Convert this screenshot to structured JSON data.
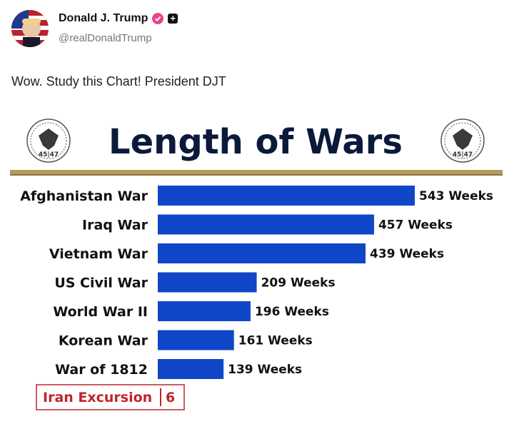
{
  "post": {
    "display_name": "Donald J. Trump",
    "handle": "@realDonaldTrump",
    "text": "Wow. Study this Chart! President DJT",
    "icons": [
      "avatar",
      "verified-badge-icon",
      "follow-plus-icon"
    ],
    "colors": {
      "verified": "#e4458b"
    }
  },
  "chart_data": {
    "type": "bar",
    "orientation": "horizontal",
    "title": "Length of Wars",
    "seal_text": "45|47",
    "categories": [
      "Afghanistan War",
      "Iraq War",
      "Vietnam War",
      "US Civil War",
      "World War II",
      "Korean War",
      "War of 1812"
    ],
    "values": [
      543,
      457,
      439,
      209,
      196,
      161,
      139
    ],
    "value_labels": [
      "543 Weeks",
      "457 Weeks",
      "439 Weeks",
      "209 Weeks",
      "196 Weeks",
      "161 Weeks",
      "139 Weeks"
    ],
    "highlight": {
      "category": "Iran Excursion",
      "value_label": "6"
    },
    "xlim": [
      0,
      543
    ],
    "grid": false,
    "colors": {
      "bar": "#1046c8",
      "title": "#0b1a3a",
      "rule": "#b49a5c",
      "highlight": "#c0242b"
    }
  }
}
